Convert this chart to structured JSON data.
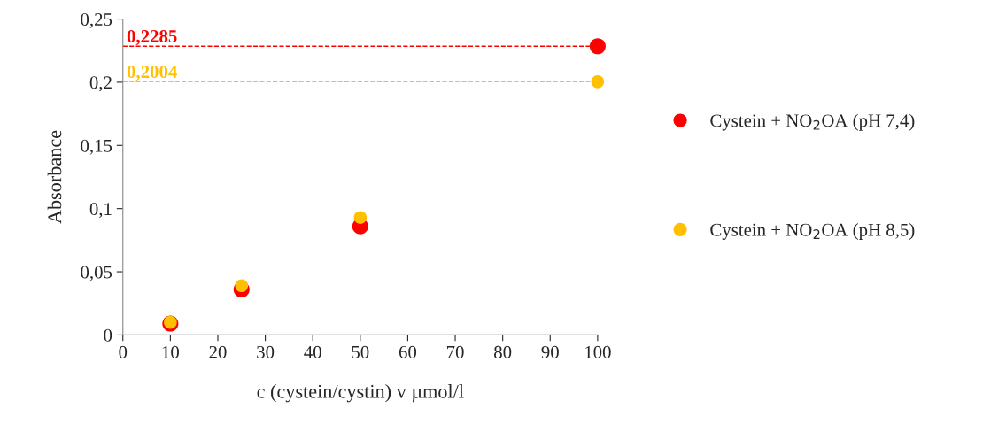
{
  "chart_data": {
    "type": "scatter",
    "xlabel": "c (cystein/cystin) v µmol/l",
    "ylabel": "Absorbance",
    "x": [
      10,
      25,
      50,
      100
    ],
    "series": [
      {
        "name": "Cystein + NO$_{2}$OA (pH 7,4)",
        "color": "#ff0000",
        "values": [
          0.009,
          0.036,
          0.086,
          0.2285
        ]
      },
      {
        "name": "Cystein + NO$_{2}$OA (pH 8,5)",
        "color": "#ffc000",
        "values": [
          0.01,
          0.039,
          0.093,
          0.2004
        ]
      }
    ],
    "xlim": [
      0,
      100
    ],
    "xticks": [
      0,
      10,
      20,
      30,
      40,
      50,
      60,
      70,
      80,
      90,
      100
    ],
    "ylim": [
      0,
      0.25
    ],
    "yticks": [
      0,
      {
        "value": 0.05,
        "label": "0,05"
      },
      {
        "value": 0.1,
        "label": "0,1"
      },
      {
        "value": 0.15,
        "label": "0,15"
      },
      {
        "value": 0.2,
        "label": "0,2"
      },
      {
        "value": 0.25,
        "label": "0,25"
      }
    ],
    "ref_lines": [
      {
        "axis": "y",
        "value": 0.2285,
        "label": "0,2285",
        "color": "#ff0000",
        "line_style": "dashed"
      },
      {
        "axis": "y",
        "value": 0.2004,
        "label": "0,2004",
        "color": "#ffc000",
        "line_style": "dashed"
      }
    ],
    "marker": "circle",
    "grid": false,
    "legend": "right"
  }
}
